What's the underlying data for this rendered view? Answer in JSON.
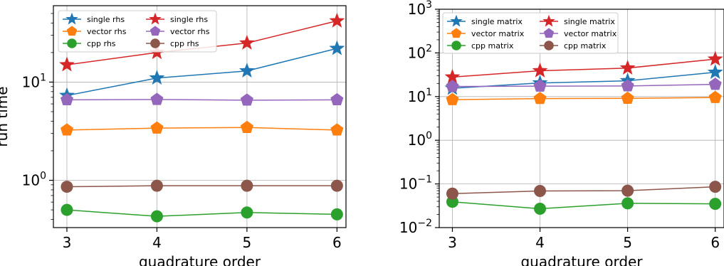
{
  "chart_data": [
    {
      "type": "line",
      "title": "",
      "xlabel": "quadrature order",
      "ylabel": "run time",
      "yscale": "log",
      "x": [
        3,
        4,
        5,
        6
      ],
      "xlim": [
        2.85,
        6.1
      ],
      "ylim": [
        0.33,
        60
      ],
      "x_ticks": [
        "3",
        "4",
        "5",
        "6"
      ],
      "y_ticks": [
        {
          "value": 1,
          "base": "10",
          "exp": "0"
        },
        {
          "value": 10,
          "base": "10",
          "exp": "1"
        }
      ],
      "grid": true,
      "legend": {
        "placement": "top-left",
        "columns": 2
      },
      "series": [
        {
          "name": "single rhs",
          "color": "#1f77b4",
          "marker": "star",
          "values": [
            7.3,
            11.0,
            13.0,
            22.0
          ]
        },
        {
          "name": "vector rhs",
          "color": "#ff7f0e",
          "marker": "pentagon",
          "values": [
            3.25,
            3.4,
            3.45,
            3.25
          ]
        },
        {
          "name": "cpp rhs",
          "color": "#2ca02c",
          "marker": "circle",
          "values": [
            0.5,
            0.43,
            0.47,
            0.45
          ]
        },
        {
          "name": "single rhs",
          "color": "#d62728",
          "marker": "star",
          "values": [
            15.0,
            20.0,
            25.0,
            42.0
          ]
        },
        {
          "name": "vector rhs",
          "color": "#9467bd",
          "marker": "pentagon",
          "values": [
            6.6,
            6.65,
            6.55,
            6.6
          ]
        },
        {
          "name": "cpp rhs",
          "color": "#8c564b",
          "marker": "circle",
          "values": [
            0.86,
            0.88,
            0.88,
            0.88
          ]
        }
      ]
    },
    {
      "type": "line",
      "title": "",
      "xlabel": "quadrature order",
      "ylabel": "",
      "yscale": "log",
      "x": [
        3,
        4,
        5,
        6
      ],
      "xlim": [
        2.85,
        6.1
      ],
      "ylim": [
        0.01,
        1000
      ],
      "x_ticks": [
        "3",
        "4",
        "5",
        "6"
      ],
      "y_ticks": [
        {
          "value": 0.01,
          "base": "10",
          "exp": "−2"
        },
        {
          "value": 0.1,
          "base": "10",
          "exp": "−1"
        },
        {
          "value": 1,
          "base": "10",
          "exp": "0"
        },
        {
          "value": 10,
          "base": "10",
          "exp": "1"
        },
        {
          "value": 100,
          "base": "10",
          "exp": "2"
        },
        {
          "value": 1000,
          "base": "10",
          "exp": "3"
        }
      ],
      "grid": true,
      "legend": {
        "placement": "top-left",
        "columns": 2
      },
      "series": [
        {
          "name": "single matrix",
          "color": "#1f77b4",
          "marker": "star",
          "values": [
            15.5,
            20.5,
            23.0,
            36.0
          ]
        },
        {
          "name": "vector matrix",
          "color": "#ff7f0e",
          "marker": "pentagon",
          "values": [
            8.5,
            9.0,
            9.1,
            9.5
          ]
        },
        {
          "name": "cpp matrix",
          "color": "#2ca02c",
          "marker": "circle",
          "values": [
            0.039,
            0.027,
            0.036,
            0.035
          ]
        },
        {
          "name": "single matrix",
          "color": "#d62728",
          "marker": "star",
          "values": [
            28.0,
            39.0,
            45.0,
            72.0
          ]
        },
        {
          "name": "vector matrix",
          "color": "#9467bd",
          "marker": "pentagon",
          "values": [
            17.0,
            17.3,
            17.5,
            19.0
          ]
        },
        {
          "name": "cpp matrix",
          "color": "#8c564b",
          "marker": "circle",
          "values": [
            0.06,
            0.069,
            0.07,
            0.086
          ]
        }
      ]
    }
  ]
}
